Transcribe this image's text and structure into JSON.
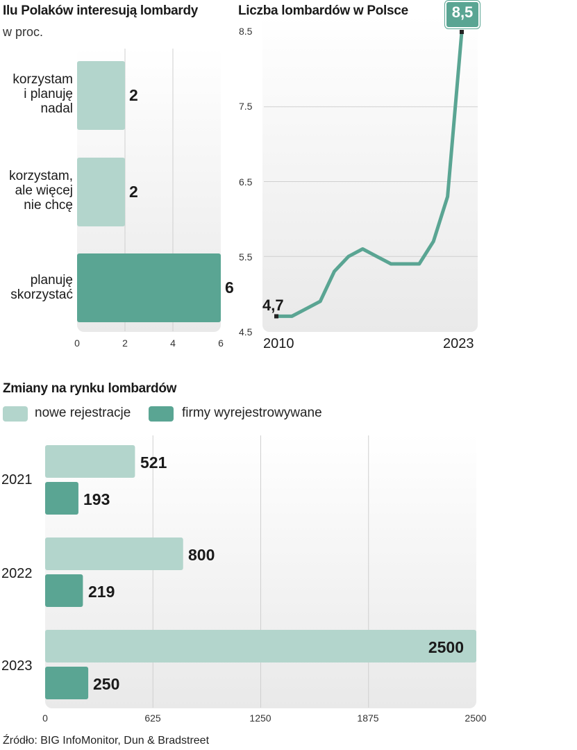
{
  "colors": {
    "light": "#b3d5cc",
    "dark": "#5aa593",
    "grid": "#cfcfcf"
  },
  "chart_data": [
    {
      "type": "bar",
      "title": "Ilu Polaków interesują lombardy",
      "subtitle": "w proc.",
      "categories": [
        "korzystam\ni planuję\nnadal",
        "korzystam,\nale więcej\nnie chcę",
        "planuję\nskorzystać"
      ],
      "values": [
        2,
        2,
        6
      ],
      "value_labels": [
        "2",
        "2",
        "6"
      ],
      "xlim": [
        0,
        6
      ],
      "xticks": [
        "0",
        "2",
        "4",
        "6"
      ]
    },
    {
      "type": "line",
      "title": "Liczba lombardów w Polsce",
      "x": [
        2010,
        2011,
        2012,
        2013,
        2014,
        2015,
        2016,
        2017,
        2018,
        2019,
        2020,
        2021,
        2022,
        2023
      ],
      "y": [
        4.7,
        4.7,
        4.8,
        4.9,
        5.3,
        5.5,
        5.6,
        5.5,
        5.4,
        5.4,
        5.4,
        5.7,
        6.3,
        8.5
      ],
      "ylim": [
        4.5,
        8.5
      ],
      "yticks": [
        "8.5",
        "7.5",
        "6.5",
        "5.5",
        "4.5"
      ],
      "x_labels": [
        "2010",
        "2023"
      ],
      "start_label": "4,7",
      "end_label": "8,5"
    },
    {
      "type": "bar",
      "title": "Zmiany na rynku lombardów",
      "categories": [
        "2021",
        "2022",
        "2023"
      ],
      "series": [
        {
          "name": "nowe rejestracje",
          "values": [
            521,
            800,
            2500
          ],
          "labels": [
            "521",
            "800",
            "2500"
          ]
        },
        {
          "name": "firmy wyrejestrowywane",
          "values": [
            193,
            219,
            250
          ],
          "labels": [
            "193",
            "219",
            "250"
          ]
        }
      ],
      "xlim": [
        0,
        2500
      ],
      "xticks": [
        "0",
        "625",
        "1250",
        "1875",
        "2500"
      ]
    }
  ],
  "source": "Źródło: BIG InfoMonitor, Dun & Bradstreet"
}
